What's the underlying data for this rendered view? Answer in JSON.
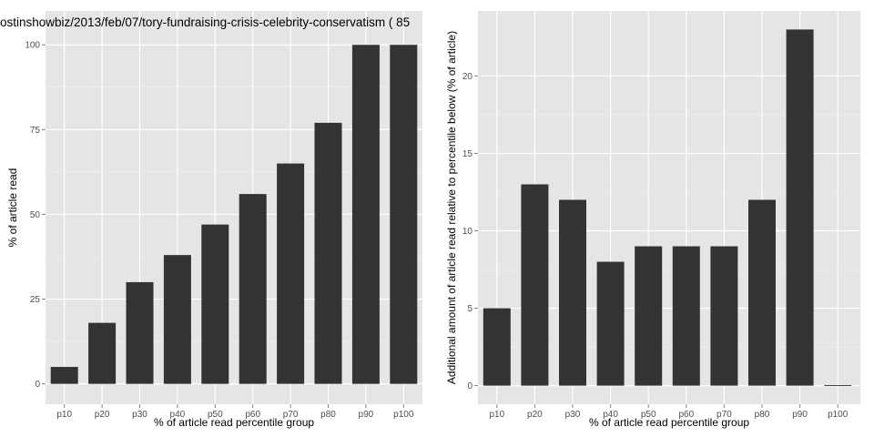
{
  "chart_data": [
    {
      "type": "bar",
      "title": "ostinshowbiz/2013/feb/07/tory-fundraising-crisis-celebrity-conservatism ( 85",
      "xlabel": "% of article read percentile group",
      "ylabel": "% of article read",
      "categories": [
        "p10",
        "p20",
        "p30",
        "p40",
        "p50",
        "p60",
        "p70",
        "p80",
        "p90",
        "p100"
      ],
      "values": [
        5,
        18,
        30,
        38,
        47,
        56,
        65,
        77,
        100,
        100
      ],
      "ylim": [
        -6,
        110
      ],
      "yticks": [
        0,
        25,
        50,
        75,
        100
      ],
      "ytick_labels": [
        "0",
        "25",
        "50",
        "75",
        "100"
      ],
      "grid": true,
      "bar_color": "#333333",
      "panel_background": "#e5e5e5"
    },
    {
      "type": "bar",
      "title": "",
      "xlabel": "% of article read percentile group",
      "ylabel": "Additional amount of article read relative to percentile below (% of article)",
      "categories": [
        "p10",
        "p20",
        "p30",
        "p40",
        "p50",
        "p60",
        "p70",
        "p80",
        "p90",
        "p100"
      ],
      "values": [
        5,
        13,
        12,
        8,
        9,
        9,
        9,
        12,
        23,
        0
      ],
      "ylim": [
        -1.2,
        24.2
      ],
      "yticks": [
        0,
        5,
        10,
        15,
        20
      ],
      "ytick_labels": [
        "0",
        "5",
        "10",
        "15",
        "20"
      ],
      "grid": true,
      "bar_color": "#333333",
      "panel_background": "#e5e5e5"
    }
  ]
}
